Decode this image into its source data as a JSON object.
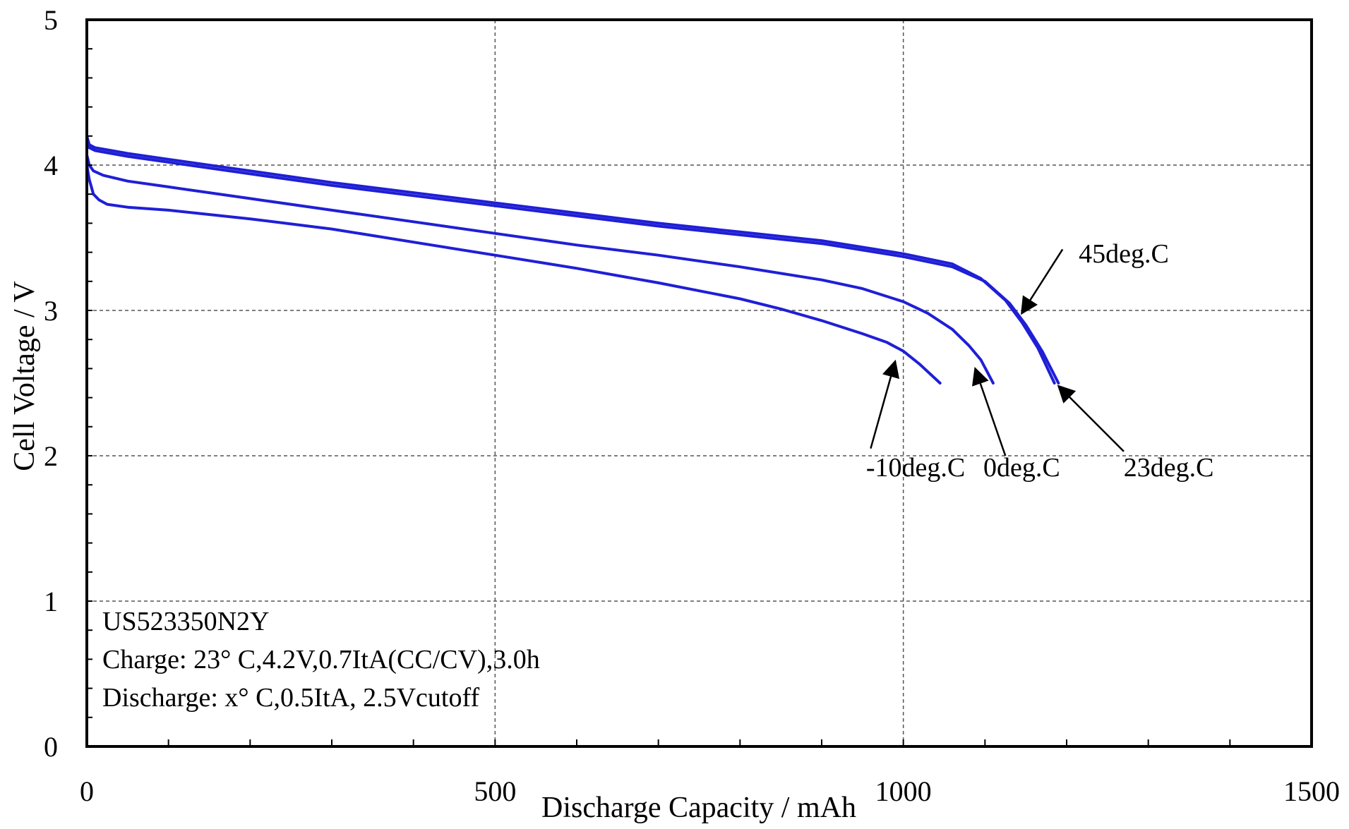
{
  "chart_data": {
    "type": "line",
    "title": "",
    "xlabel": "Discharge Capacity / mAh",
    "ylabel": "Cell Voltage / V",
    "xlim": [
      0,
      1500
    ],
    "ylim": [
      0,
      5
    ],
    "xticks": [
      0,
      500,
      1000,
      1500
    ],
    "xtick_labels": [
      "0",
      "500",
      "1000",
      "1500"
    ],
    "yticks": [
      0,
      1,
      2,
      3,
      4,
      5
    ],
    "ytick_labels": [
      "0",
      "1",
      "2",
      "3",
      "4",
      "5"
    ],
    "grid": true,
    "line_color": "#1f1fd6",
    "series": [
      {
        "name": "-10deg.C",
        "x": [
          0,
          3,
          8,
          15,
          25,
          50,
          100,
          200,
          300,
          400,
          500,
          600,
          700,
          800,
          850,
          900,
          950,
          980,
          1000,
          1020,
          1045
        ],
        "y": [
          4.0,
          3.9,
          3.8,
          3.76,
          3.73,
          3.71,
          3.69,
          3.63,
          3.56,
          3.47,
          3.38,
          3.29,
          3.19,
          3.08,
          3.01,
          2.93,
          2.84,
          2.78,
          2.72,
          2.63,
          2.5
        ]
      },
      {
        "name": "0deg.C",
        "x": [
          0,
          3,
          8,
          20,
          50,
          100,
          200,
          300,
          400,
          500,
          600,
          700,
          800,
          900,
          950,
          1000,
          1030,
          1060,
          1080,
          1095,
          1110
        ],
        "y": [
          4.07,
          4.0,
          3.96,
          3.93,
          3.89,
          3.85,
          3.77,
          3.69,
          3.61,
          3.53,
          3.45,
          3.38,
          3.3,
          3.21,
          3.15,
          3.06,
          2.98,
          2.87,
          2.76,
          2.66,
          2.5
        ]
      },
      {
        "name": "23deg.C",
        "x": [
          0,
          3,
          10,
          30,
          50,
          100,
          200,
          300,
          400,
          500,
          600,
          700,
          800,
          900,
          1000,
          1060,
          1100,
          1130,
          1150,
          1170,
          1190
        ],
        "y": [
          4.17,
          4.12,
          4.1,
          4.08,
          4.06,
          4.02,
          3.94,
          3.86,
          3.79,
          3.72,
          3.65,
          3.58,
          3.52,
          3.46,
          3.37,
          3.3,
          3.2,
          3.05,
          2.9,
          2.72,
          2.5
        ]
      },
      {
        "name": "45deg.C",
        "x": [
          0,
          3,
          10,
          30,
          50,
          100,
          200,
          300,
          400,
          500,
          600,
          700,
          800,
          900,
          1000,
          1060,
          1095,
          1125,
          1145,
          1165,
          1185
        ],
        "y": [
          4.2,
          4.14,
          4.12,
          4.1,
          4.08,
          4.04,
          3.96,
          3.88,
          3.81,
          3.74,
          3.67,
          3.6,
          3.54,
          3.48,
          3.39,
          3.32,
          3.22,
          3.07,
          2.92,
          2.74,
          2.5
        ]
      }
    ],
    "annotations": [
      {
        "text": "-10deg.C",
        "label_x": 1015,
        "label_y": 1.86,
        "arrow_from": [
          960,
          2.05
        ],
        "arrow_to": [
          990,
          2.65
        ]
      },
      {
        "text": "0deg.C",
        "label_x": 1145,
        "label_y": 1.86,
        "arrow_from": [
          1125,
          2.0
        ],
        "arrow_to": [
          1088,
          2.6
        ]
      },
      {
        "text": "23deg.C",
        "label_x": 1325,
        "label_y": 1.86,
        "arrow_from": [
          1270,
          2.03
        ],
        "arrow_to": [
          1190,
          2.48
        ]
      },
      {
        "text": "45deg.C",
        "label_x": 1270,
        "label_y": 3.33,
        "arrow_from": [
          1195,
          3.42
        ],
        "arrow_to": [
          1145,
          2.98
        ]
      }
    ],
    "info_text": [
      "US523350N2Y",
      "Charge: 23° C,4.2V,0.7ItA(CC/CV),3.0h",
      "Discharge: x° C,0.5ItA, 2.5Vcutoff"
    ]
  }
}
